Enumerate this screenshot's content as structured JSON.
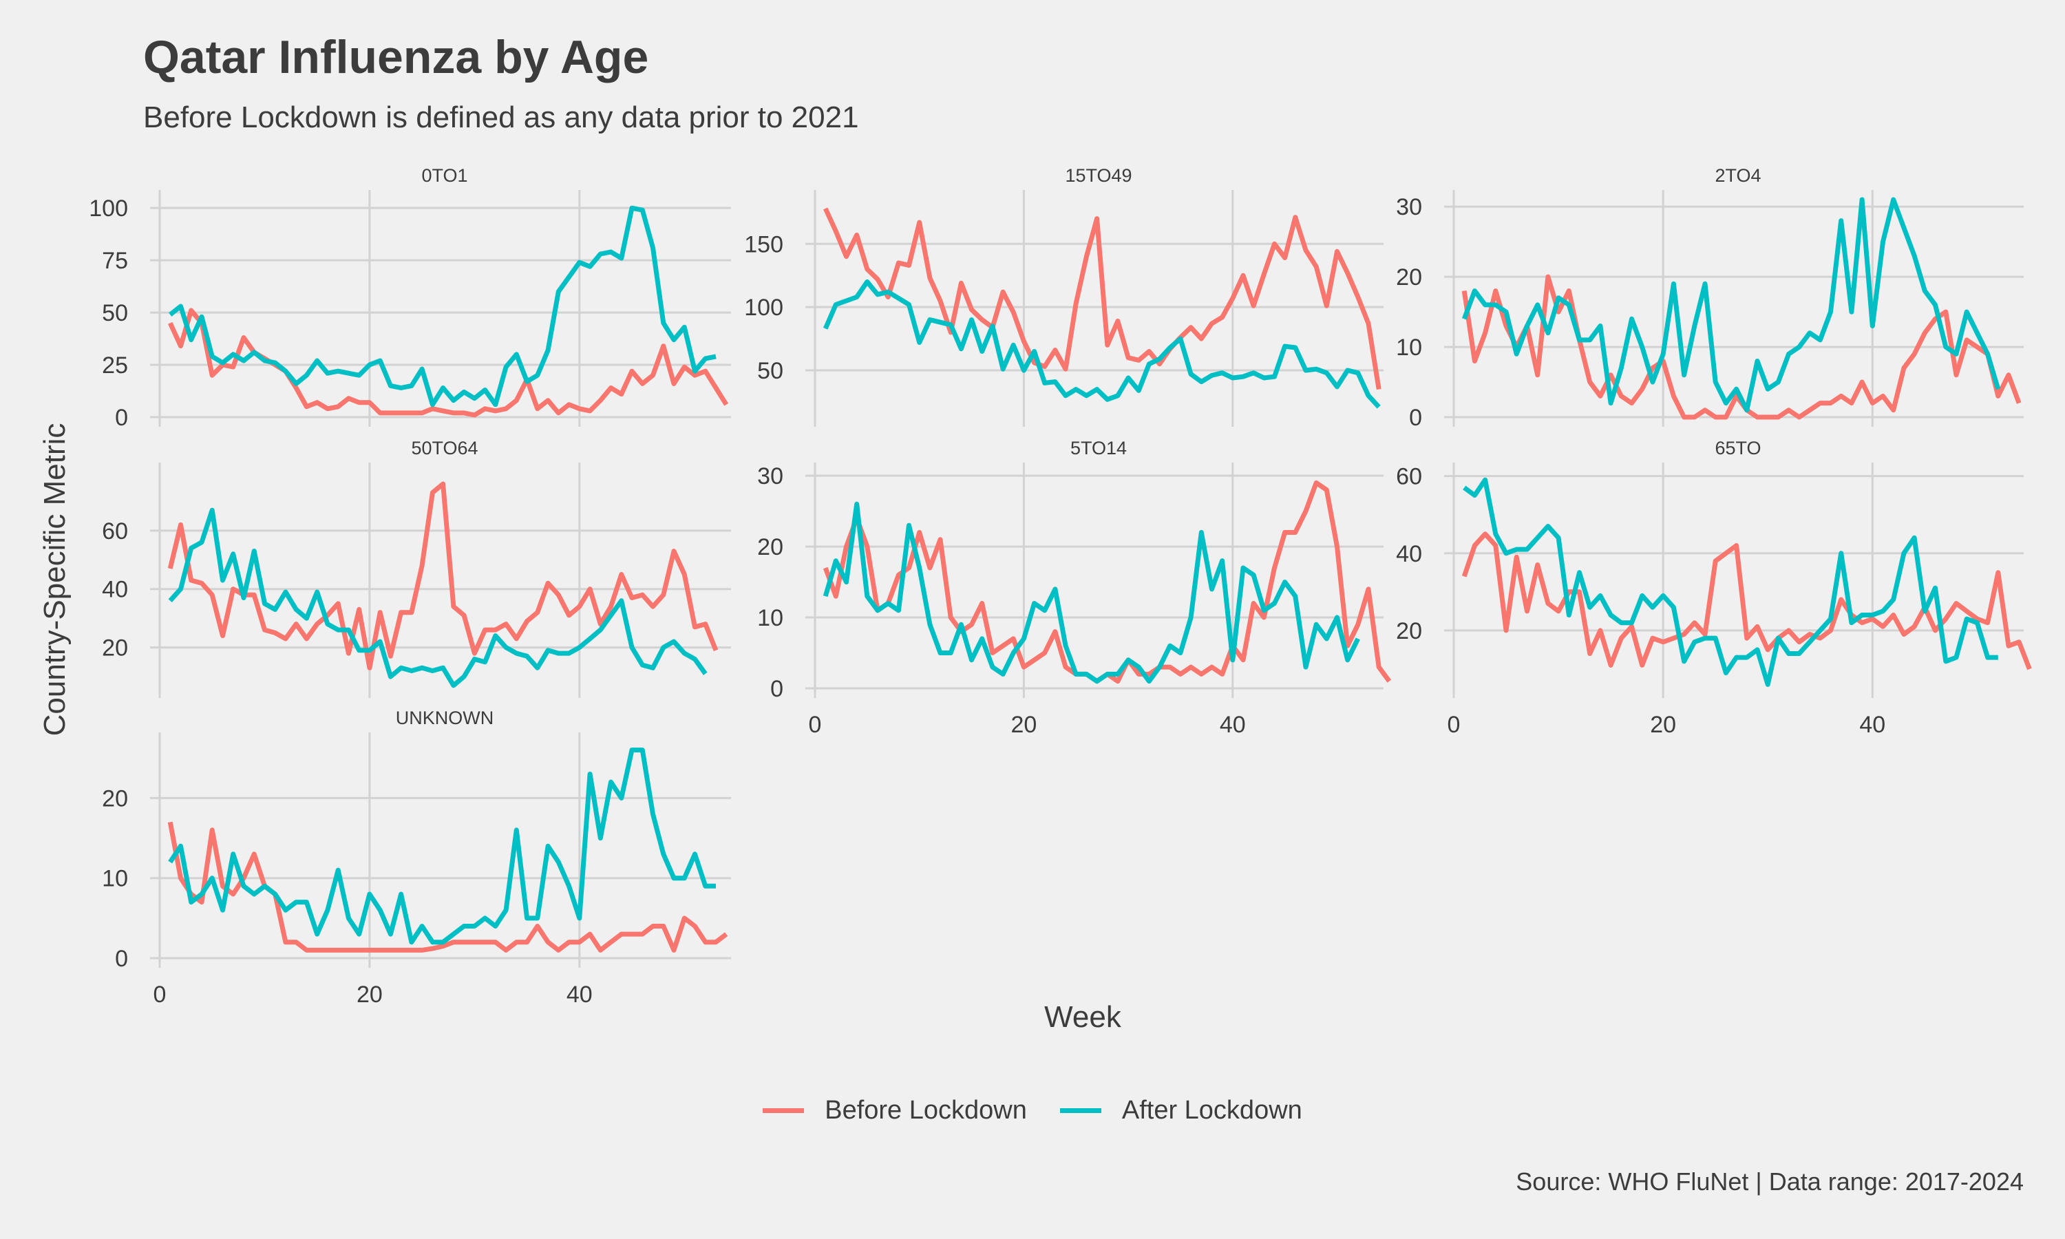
{
  "page": {
    "title": "Qatar Influenza by Age",
    "subtitle": "Before Lockdown is defined as any data prior to 2021",
    "caption": "Source: WHO FluNet | Data range: 2017-2024"
  },
  "chart_data": {
    "type": "line",
    "xlabel": "Week",
    "ylabel": "Country-Specific Metric",
    "xlim": [
      0,
      53
    ],
    "xticks": [
      0,
      20,
      40
    ],
    "grid": true,
    "legend_position": "bottom",
    "legend": [
      {
        "name": "Before Lockdown",
        "color": "#F8766D"
      },
      {
        "name": "After Lockdown",
        "color": "#00BFC4"
      }
    ],
    "panels": [
      {
        "name": "0TO1",
        "ylim": [
          0,
          104
        ],
        "yticks": [
          0,
          25,
          50,
          75,
          100
        ],
        "series": [
          {
            "name": "Before Lockdown",
            "values": [
              45,
              34,
              51,
              45,
              20,
              25,
              24,
              38,
              31,
              28,
              25,
              22,
              14,
              5,
              7,
              4,
              5,
              9,
              7,
              7,
              2,
              2,
              2,
              2,
              2,
              4,
              3,
              2,
              2,
              1,
              4,
              3,
              4,
              8,
              18,
              4,
              8,
              2,
              6,
              4,
              3,
              8,
              14,
              11,
              22,
              16,
              20,
              34,
              16,
              24,
              20,
              22,
              14,
              6
            ]
          },
          {
            "name": "After Lockdown",
            "values": [
              49,
              53,
              37,
              48,
              29,
              26,
              30,
              27,
              31,
              27,
              26,
              22,
              16,
              20,
              27,
              21,
              22,
              21,
              20,
              25,
              27,
              15,
              14,
              15,
              23,
              6,
              14,
              8,
              12,
              9,
              13,
              6,
              24,
              30,
              17,
              20,
              32,
              60,
              67,
              74,
              72,
              78,
              79,
              76,
              100,
              99,
              81,
              45,
              37,
              43,
              22,
              28,
              29
            ]
          }
        ]
      },
      {
        "name": "15TO49",
        "ylim": [
          13,
          185
        ],
        "yticks": [
          50,
          100,
          150
        ],
        "series": [
          {
            "name": "Before Lockdown",
            "values": [
              178,
              160,
              140,
              157,
              130,
              122,
              108,
              135,
              133,
              167,
              123,
              105,
              80,
              119,
              98,
              90,
              84,
              112,
              96,
              73,
              56,
              53,
              66,
              51,
              103,
              140,
              170,
              70,
              89,
              60,
              58,
              65,
              55,
              67,
              76,
              84,
              75,
              87,
              92,
              107,
              125,
              101,
              126,
              150,
              139,
              171,
              145,
              132,
              101,
              144,
              127,
              108,
              87,
              35
            ]
          },
          {
            "name": "After Lockdown",
            "values": [
              83,
              102,
              105,
              108,
              120,
              110,
              112,
              107,
              102,
              72,
              90,
              88,
              86,
              67,
              90,
              65,
              85,
              51,
              70,
              50,
              65,
              40,
              41,
              30,
              35,
              30,
              35,
              27,
              30,
              44,
              34,
              55,
              59,
              68,
              75,
              47,
              41,
              46,
              48,
              44,
              45,
              48,
              44,
              45,
              69,
              68,
              50,
              51,
              48,
              37,
              50,
              48,
              30,
              21
            ]
          }
        ]
      },
      {
        "name": "2TO4",
        "ylim": [
          0,
          31
        ],
        "yticks": [
          0,
          10,
          20,
          30
        ],
        "series": [
          {
            "name": "Before Lockdown",
            "values": [
              18,
              8,
              12,
              18,
              13,
              10,
              13,
              6,
              20,
              15,
              18,
              11,
              5,
              3,
              6,
              3,
              2,
              4,
              7,
              8,
              3,
              0,
              0,
              1,
              0,
              0,
              3,
              1,
              0,
              0,
              0,
              1,
              0,
              1,
              2,
              2,
              3,
              2,
              5,
              2,
              3,
              1,
              7,
              9,
              12,
              14,
              15,
              6,
              11,
              10,
              9,
              3,
              6,
              2
            ]
          },
          {
            "name": "After Lockdown",
            "values": [
              14,
              18,
              16,
              16,
              15,
              9,
              13,
              16,
              12,
              17,
              16,
              11,
              11,
              13,
              2,
              7,
              14,
              10,
              5,
              9,
              19,
              6,
              13,
              19,
              5,
              2,
              4,
              1,
              8,
              4,
              5,
              9,
              10,
              12,
              11,
              15,
              28,
              15,
              31,
              13,
              25,
              31,
              27,
              23,
              18,
              16,
              10,
              9,
              15,
              12,
              9,
              4
            ]
          }
        ]
      },
      {
        "name": "50TO64",
        "ylim": [
          6,
          80
        ],
        "yticks": [
          20,
          40,
          60
        ],
        "series": [
          {
            "name": "Before Lockdown",
            "values": [
              47,
              62,
              43,
              42,
              38,
              24,
              40,
              38,
              38,
              26,
              25,
              23,
              28,
              23,
              28,
              31,
              35,
              18,
              33,
              13,
              32,
              17,
              32,
              32,
              48,
              73,
              76,
              34,
              31,
              18,
              26,
              26,
              28,
              23,
              29,
              32,
              42,
              38,
              31,
              34,
              40,
              28,
              34,
              45,
              37,
              38,
              34,
              38,
              53,
              45,
              27,
              28,
              19
            ]
          },
          {
            "name": "After Lockdown",
            "values": [
              36,
              40,
              54,
              56,
              67,
              43,
              52,
              37,
              53,
              35,
              33,
              39,
              33,
              30,
              39,
              28,
              26,
              26,
              19,
              19,
              22,
              10,
              13,
              12,
              13,
              12,
              13,
              7,
              10,
              16,
              15,
              24,
              20,
              18,
              17,
              13,
              19,
              18,
              18,
              20,
              23,
              26,
              31,
              36,
              20,
              14,
              13,
              20,
              22,
              18,
              16,
              11
            ]
          }
        ]
      },
      {
        "name": "5TO14",
        "ylim": [
          0,
          30.5
        ],
        "yticks": [
          0,
          10,
          20,
          30
        ],
        "series": [
          {
            "name": "Before Lockdown",
            "values": [
              17,
              13,
              20,
              24,
              20,
              11,
              12,
              16,
              17,
              22,
              17,
              21,
              10,
              8,
              9,
              12,
              5,
              6,
              7,
              3,
              4,
              5,
              8,
              3,
              2,
              2,
              1,
              2,
              1,
              4,
              2,
              2,
              3,
              3,
              2,
              3,
              2,
              3,
              2,
              6,
              4,
              12,
              10,
              17,
              22,
              22,
              25,
              29,
              28,
              20,
              6,
              9,
              14,
              3,
              1
            ]
          },
          {
            "name": "After Lockdown",
            "values": [
              13,
              18,
              15,
              26,
              13,
              11,
              12,
              11,
              23,
              17,
              9,
              5,
              5,
              9,
              4,
              7,
              3,
              2,
              5,
              7,
              12,
              11,
              14,
              6,
              2,
              2,
              1,
              2,
              2,
              4,
              3,
              1,
              3,
              6,
              5,
              10,
              22,
              14,
              18,
              4,
              17,
              16,
              11,
              12,
              15,
              13,
              3,
              9,
              7,
              10,
              4,
              7
            ]
          }
        ]
      },
      {
        "name": "65TO",
        "ylim": [
          5,
          61
        ],
        "yticks": [
          20,
          40,
          60
        ],
        "series": [
          {
            "name": "Before Lockdown",
            "values": [
              34,
              42,
              45,
              42,
              20,
              39,
              25,
              37,
              27,
              25,
              30,
              30,
              14,
              20,
              11,
              18,
              21,
              11,
              18,
              17,
              18,
              19,
              22,
              19,
              38,
              40,
              42,
              18,
              21,
              15,
              18,
              20,
              17,
              19,
              18,
              20,
              28,
              24,
              22,
              23,
              21,
              24,
              19,
              21,
              26,
              20,
              23,
              27,
              25,
              23,
              22,
              35,
              16,
              17,
              10
            ]
          },
          {
            "name": "After Lockdown",
            "values": [
              57,
              55,
              59,
              45,
              40,
              41,
              41,
              44,
              47,
              44,
              24,
              35,
              26,
              29,
              24,
              22,
              22,
              29,
              26,
              29,
              26,
              12,
              17,
              18,
              18,
              9,
              13,
              13,
              15,
              6,
              18,
              14,
              14,
              17,
              20,
              23,
              40,
              22,
              24,
              24,
              25,
              28,
              40,
              44,
              25,
              31,
              12,
              13,
              23,
              22,
              13,
              13
            ]
          }
        ]
      },
      {
        "name": "UNKNOWN",
        "ylim": [
          0,
          27
        ],
        "yticks": [
          0,
          10,
          20
        ],
        "series": [
          {
            "name": "Before Lockdown",
            "values": [
              17,
              10,
              8,
              7,
              16,
              9,
              8,
              10,
              13,
              9,
              8,
              2,
              2,
              1,
              1,
              1,
              1,
              1,
              1,
              1,
              1,
              1,
              1,
              1,
              1,
              1.2,
              1.5,
              2,
              2,
              2,
              2,
              2,
              1,
              2,
              2,
              4,
              2,
              1,
              2,
              2,
              3,
              1,
              2,
              3,
              3,
              3,
              4,
              4,
              1,
              5,
              4,
              2,
              2,
              3
            ]
          },
          {
            "name": "After Lockdown",
            "values": [
              12,
              14,
              7,
              8,
              10,
              6,
              13,
              9,
              8,
              9,
              8,
              6,
              7,
              7,
              3,
              6,
              11,
              5,
              3,
              8,
              6,
              3,
              8,
              2,
              4,
              2,
              2,
              3,
              4,
              4,
              5,
              4,
              6,
              16,
              5,
              5,
              14,
              12,
              9,
              5,
              23,
              15,
              22,
              20,
              26,
              26,
              18,
              13,
              10,
              10,
              13,
              9,
              9
            ]
          }
        ]
      }
    ]
  }
}
